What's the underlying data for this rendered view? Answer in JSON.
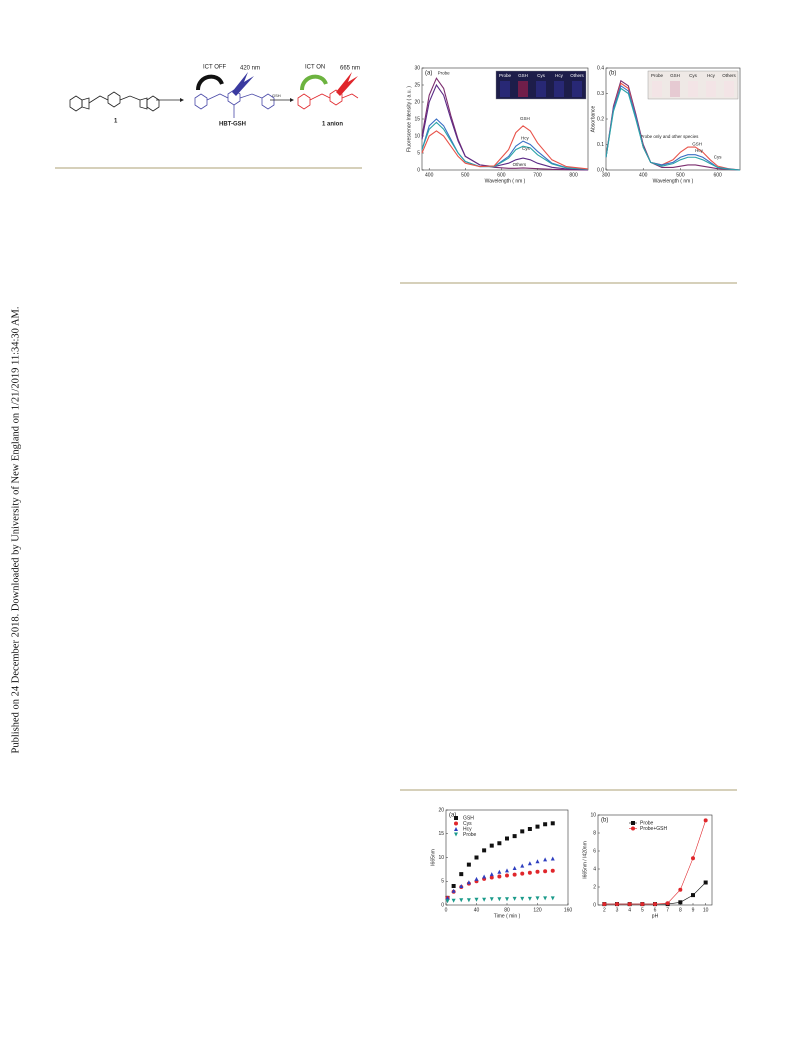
{
  "sidebar": "Published on 24 December 2018. Downloaded by University of New England on 1/21/2019 11:34:30 AM.",
  "scheme": {
    "compound_1": "1",
    "reagent": "GSH",
    "hbt_gsh": "HBT-GSH",
    "anion": "1 anion",
    "ict_off": "ICT OFF",
    "em_off": "420 nm",
    "ict_on": "ICT ON",
    "em_on": "665 nm"
  },
  "chart_data": [
    {
      "type": "line",
      "panel_label": "(a)",
      "xlabel": "Wavelength ( nm )",
      "ylabel": "Fluorescence Intensity ( a.u. )",
      "x": [
        380,
        400,
        420,
        440,
        460,
        480,
        500,
        540,
        580,
        620,
        640,
        660,
        680,
        700,
        740,
        780,
        840
      ],
      "xlim": [
        380,
        840
      ],
      "xticks": [
        400,
        500,
        600,
        700,
        800
      ],
      "ylim": [
        0,
        30
      ],
      "yticks": [
        0,
        5,
        10,
        15,
        20,
        25,
        30
      ],
      "inset_labels": [
        "Probe",
        "GSH",
        "Cys",
        "Hcy",
        "Others"
      ],
      "legend": "none",
      "series": [
        {
          "name": "Probe",
          "color": "#7b2d6e",
          "values": [
            10,
            22,
            27,
            24,
            16,
            9,
            4,
            1.5,
            0.8,
            0.5,
            0.5,
            0.6,
            0.5,
            0.4,
            0.2,
            0.1,
            0
          ]
        },
        {
          "name": "Others",
          "color": "#5b2a86",
          "values": [
            9,
            20,
            25,
            22,
            15,
            8.5,
            4,
            1.5,
            1,
            2,
            3,
            3.5,
            3,
            2,
            0.8,
            0.3,
            0
          ]
        },
        {
          "name": "Hcy",
          "color": "#3a6fc4",
          "values": [
            6,
            13,
            15,
            13,
            9,
            5,
            2.5,
            1,
            1,
            4,
            7,
            8.5,
            7.5,
            5.5,
            2,
            0.7,
            0.2
          ]
        },
        {
          "name": "Cys",
          "color": "#2aa3a8",
          "values": [
            6,
            12,
            14,
            12,
            8.5,
            5,
            2.5,
            1,
            1,
            3.5,
            6,
            7,
            6.5,
            4.5,
            1.8,
            0.6,
            0.2
          ]
        },
        {
          "name": "GSH",
          "color": "#e8534a",
          "values": [
            5,
            10,
            11.5,
            10,
            7,
            4,
            2,
            1,
            1.2,
            6,
            11,
            13,
            11.5,
            8,
            3,
            1,
            0.3
          ]
        }
      ]
    },
    {
      "type": "line",
      "panel_label": "(b)",
      "xlabel": "Wavelength ( nm )",
      "ylabel": "Absorbance",
      "x": [
        300,
        320,
        340,
        360,
        380,
        400,
        420,
        450,
        480,
        500,
        520,
        540,
        560,
        580,
        600,
        630,
        660
      ],
      "xlim": [
        300,
        660
      ],
      "xticks": [
        300,
        400,
        500,
        600
      ],
      "ylim": [
        0,
        0.4
      ],
      "yticks": [
        {
          "value": 0,
          "label": "0.0"
        },
        0.1,
        0.2,
        0.3,
        0.4
      ],
      "inset_labels": [
        "Probe",
        "GSH",
        "Cys",
        "Hcy",
        "Others"
      ],
      "legend": "none",
      "series": [
        {
          "name": "Probe only and other species",
          "color": "#7b2d6e",
          "values": [
            0.05,
            0.25,
            0.35,
            0.33,
            0.22,
            0.1,
            0.03,
            0.01,
            0.01,
            0.015,
            0.02,
            0.02,
            0.015,
            0.01,
            0.005,
            0.002,
            0
          ]
        },
        {
          "name": "GSH",
          "color": "#e8534a",
          "values": [
            0.05,
            0.24,
            0.34,
            0.32,
            0.21,
            0.09,
            0.03,
            0.02,
            0.04,
            0.07,
            0.09,
            0.09,
            0.07,
            0.04,
            0.015,
            0.005,
            0
          ]
        },
        {
          "name": "Hcy",
          "color": "#3a6fc4",
          "values": [
            0.05,
            0.24,
            0.33,
            0.31,
            0.21,
            0.09,
            0.03,
            0.02,
            0.03,
            0.05,
            0.06,
            0.06,
            0.05,
            0.03,
            0.01,
            0.004,
            0
          ]
        },
        {
          "name": "Cys",
          "color": "#2aa3a8",
          "values": [
            0.05,
            0.23,
            0.32,
            0.3,
            0.2,
            0.09,
            0.03,
            0.015,
            0.025,
            0.04,
            0.05,
            0.05,
            0.04,
            0.025,
            0.01,
            0.003,
            0
          ]
        }
      ]
    },
    {
      "type": "scatter",
      "panel_label": "(a)",
      "xlabel": "Time ( min )",
      "ylabel": "I665nm",
      "x": [
        2,
        10,
        20,
        30,
        40,
        50,
        60,
        70,
        80,
        90,
        100,
        110,
        120,
        130,
        140
      ],
      "xlim": [
        0,
        160
      ],
      "xticks": [
        0,
        40,
        80,
        120,
        160
      ],
      "ylim": [
        0,
        20
      ],
      "yticks": [
        0,
        5,
        10,
        15,
        20
      ],
      "legend": "upper left",
      "series": [
        {
          "name": "GSH",
          "color": "#111111",
          "marker": "square",
          "values": [
            1.5,
            4,
            6.5,
            8.5,
            10,
            11.5,
            12.5,
            13,
            14,
            14.5,
            15.5,
            16,
            16.5,
            17,
            17.2
          ]
        },
        {
          "name": "Cys",
          "color": "#e0262b",
          "marker": "circle",
          "values": [
            1.5,
            2.8,
            3.8,
            4.5,
            5,
            5.5,
            5.8,
            6,
            6.2,
            6.4,
            6.6,
            6.8,
            7,
            7.1,
            7.2
          ]
        },
        {
          "name": "Hcy",
          "color": "#2f3fbf",
          "marker": "triangle",
          "values": [
            1.5,
            3,
            4,
            4.8,
            5.5,
            6,
            6.5,
            7,
            7.3,
            7.8,
            8.3,
            8.8,
            9.2,
            9.6,
            9.8
          ]
        },
        {
          "name": "Probe",
          "color": "#1a9a8a",
          "marker": "triangle-down",
          "values": [
            0.8,
            0.9,
            1,
            1,
            1.1,
            1.1,
            1.2,
            1.2,
            1.2,
            1.3,
            1.3,
            1.3,
            1.4,
            1.4,
            1.4
          ]
        }
      ]
    },
    {
      "type": "line",
      "markers": true,
      "panel_label": "(b)",
      "xlabel": "pH",
      "ylabel": "I665nm / I420nm",
      "x": [
        2,
        3,
        4,
        5,
        6,
        7,
        8,
        9,
        10
      ],
      "xlim": [
        1.5,
        10.5
      ],
      "xticks": [
        2,
        3,
        4,
        5,
        6,
        7,
        8,
        9,
        10
      ],
      "ylim": [
        0,
        10
      ],
      "yticks": [
        0,
        2,
        4,
        6,
        8,
        10
      ],
      "legend": "upper center",
      "series": [
        {
          "name": "Probe",
          "color": "#111111",
          "marker": "square",
          "values": [
            0.1,
            0.1,
            0.1,
            0.1,
            0.1,
            0.1,
            0.3,
            1.1,
            2.5
          ]
        },
        {
          "name": "Probe+GSH",
          "color": "#e0262b",
          "marker": "circle",
          "values": [
            0.1,
            0.1,
            0.1,
            0.1,
            0.1,
            0.2,
            1.7,
            5.2,
            9.4
          ]
        }
      ]
    }
  ]
}
